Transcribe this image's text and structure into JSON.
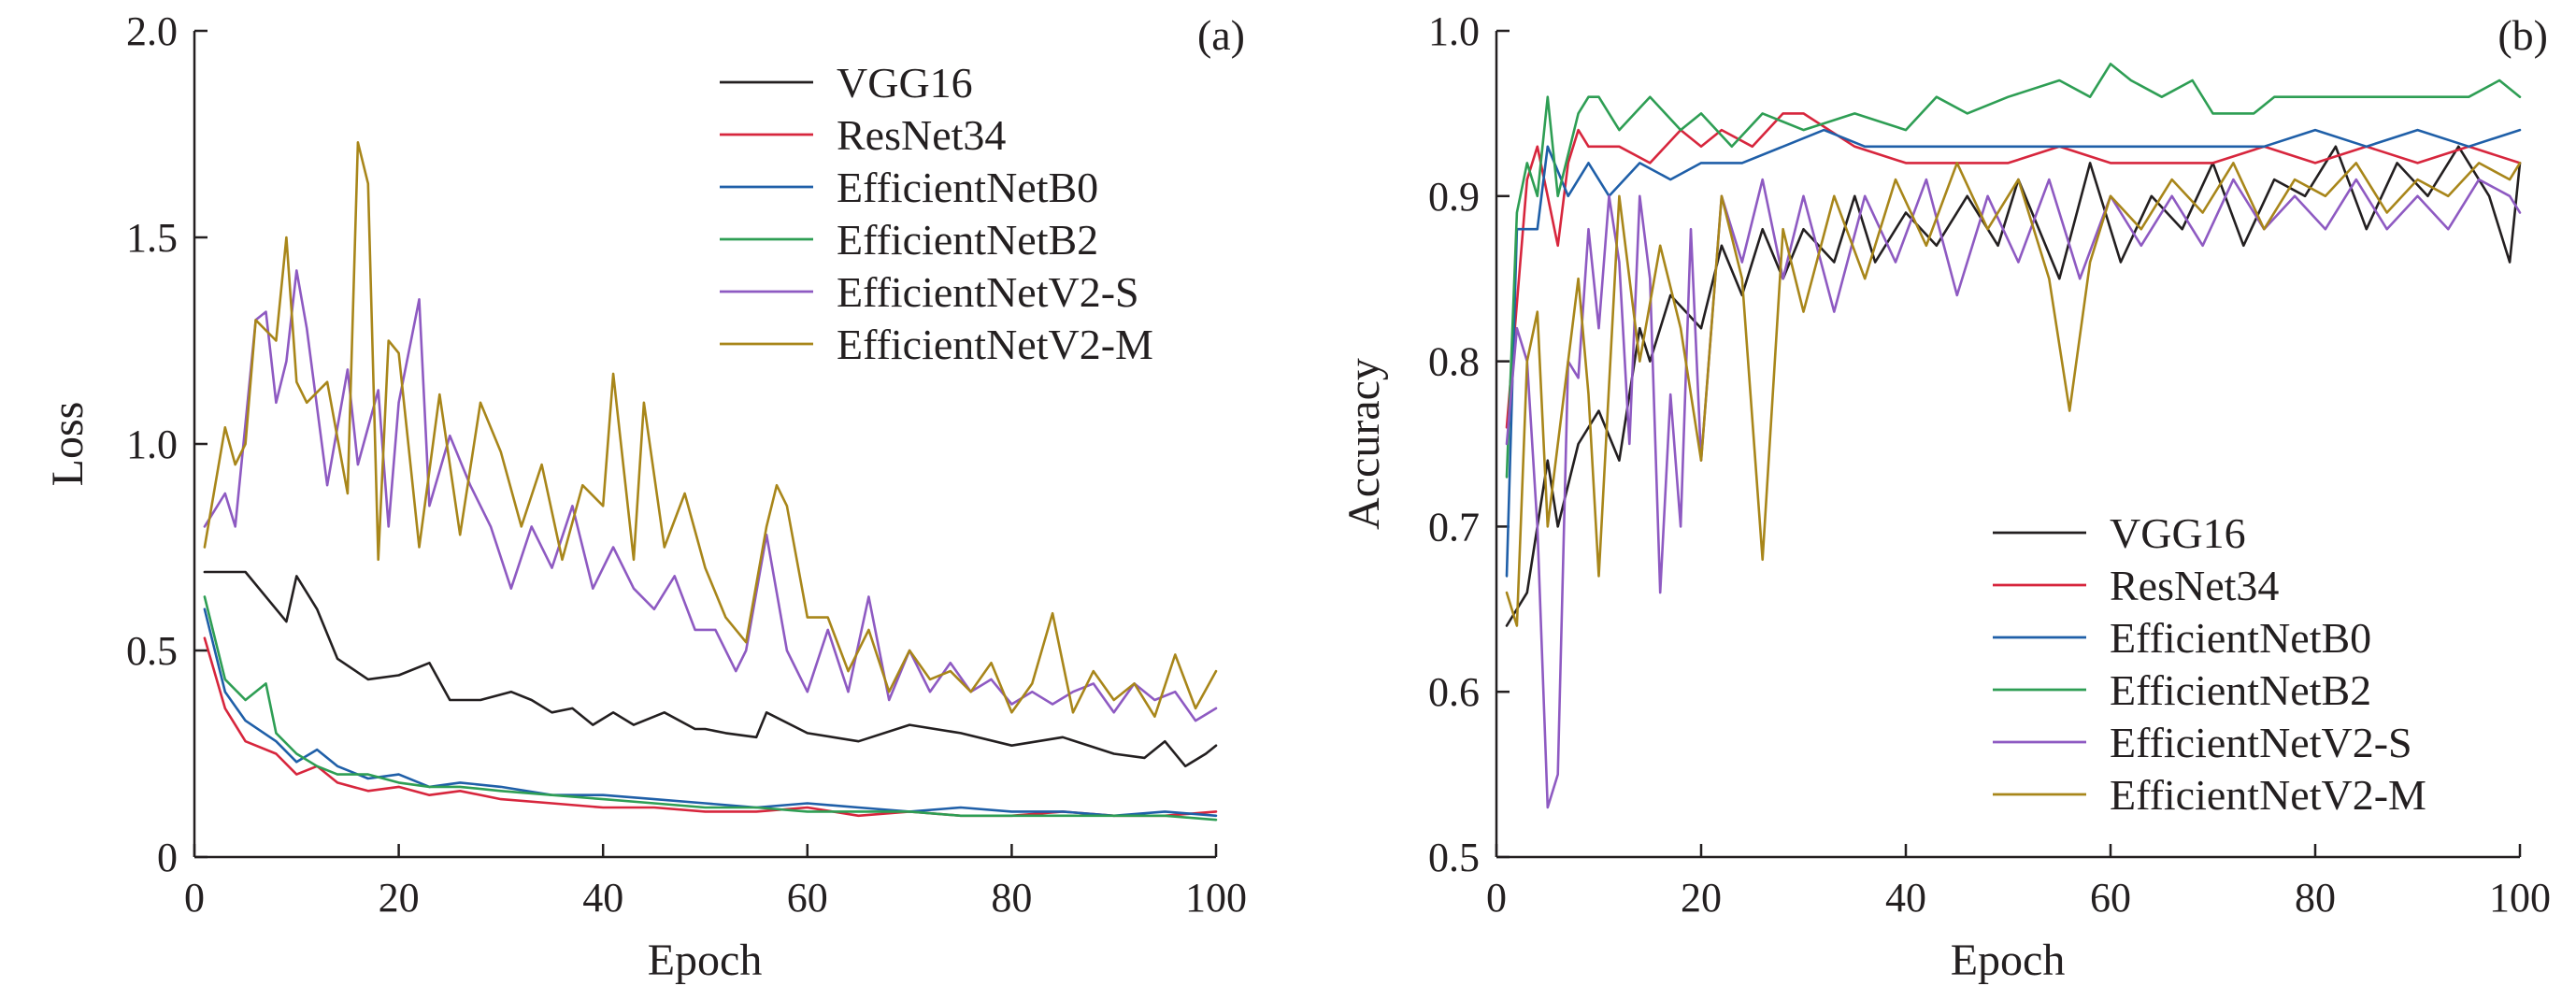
{
  "chart_data": [
    {
      "type": "line",
      "panel_label": "(a)",
      "xlabel": "Epoch",
      "ylabel": "Loss",
      "xlim": [
        0,
        100
      ],
      "ylim": [
        0,
        2.0
      ],
      "xticks": [
        "0",
        "20",
        "40",
        "60",
        "80",
        "100"
      ],
      "yticks": [
        "0",
        "0.5",
        "1.0",
        "1.5",
        "2.0"
      ],
      "legend_position": "top-right",
      "grid": false,
      "series": [
        {
          "name": "VGG16",
          "color": "#231f20",
          "x": [
            1,
            5,
            9,
            10,
            12,
            14,
            17,
            20,
            23,
            25,
            28,
            31,
            33,
            35,
            37,
            39,
            41,
            43,
            46,
            49,
            50,
            52,
            55,
            56,
            60,
            65,
            70,
            75,
            80,
            85,
            90,
            93,
            95,
            97,
            99,
            100
          ],
          "values": [
            0.69,
            0.69,
            0.57,
            0.68,
            0.6,
            0.48,
            0.43,
            0.44,
            0.47,
            0.38,
            0.38,
            0.4,
            0.38,
            0.35,
            0.36,
            0.32,
            0.35,
            0.32,
            0.35,
            0.31,
            0.31,
            0.3,
            0.29,
            0.35,
            0.3,
            0.28,
            0.32,
            0.3,
            0.27,
            0.29,
            0.25,
            0.24,
            0.28,
            0.22,
            0.25,
            0.27
          ]
        },
        {
          "name": "ResNet34",
          "color": "#d7263d",
          "x": [
            1,
            3,
            5,
            8,
            10,
            12,
            14,
            17,
            20,
            23,
            26,
            30,
            35,
            40,
            45,
            50,
            55,
            60,
            65,
            70,
            75,
            80,
            85,
            90,
            95,
            100
          ],
          "values": [
            0.53,
            0.36,
            0.28,
            0.25,
            0.2,
            0.22,
            0.18,
            0.16,
            0.17,
            0.15,
            0.16,
            0.14,
            0.13,
            0.12,
            0.12,
            0.11,
            0.11,
            0.12,
            0.1,
            0.11,
            0.1,
            0.1,
            0.11,
            0.1,
            0.1,
            0.11
          ]
        },
        {
          "name": "EfficientNetB0",
          "color": "#1f5fa8",
          "x": [
            1,
            3,
            5,
            8,
            10,
            12,
            14,
            17,
            20,
            23,
            26,
            30,
            35,
            40,
            45,
            50,
            55,
            60,
            65,
            70,
            75,
            80,
            85,
            90,
            95,
            100
          ],
          "values": [
            0.6,
            0.4,
            0.33,
            0.28,
            0.23,
            0.26,
            0.22,
            0.19,
            0.2,
            0.17,
            0.18,
            0.17,
            0.15,
            0.15,
            0.14,
            0.13,
            0.12,
            0.13,
            0.12,
            0.11,
            0.12,
            0.11,
            0.11,
            0.1,
            0.11,
            0.1
          ]
        },
        {
          "name": "EfficientNetB2",
          "color": "#2e9e54",
          "x": [
            1,
            3,
            5,
            7,
            8,
            10,
            12,
            14,
            17,
            20,
            23,
            26,
            30,
            35,
            40,
            45,
            50,
            55,
            60,
            65,
            70,
            75,
            80,
            85,
            90,
            95,
            100
          ],
          "values": [
            0.63,
            0.43,
            0.38,
            0.42,
            0.3,
            0.25,
            0.22,
            0.2,
            0.2,
            0.18,
            0.17,
            0.17,
            0.16,
            0.15,
            0.14,
            0.13,
            0.12,
            0.12,
            0.11,
            0.11,
            0.11,
            0.1,
            0.1,
            0.1,
            0.1,
            0.1,
            0.09
          ]
        },
        {
          "name": "EfficientNetV2-S",
          "color": "#8e5ac2",
          "x": [
            1,
            3,
            4,
            6,
            7,
            8,
            9,
            10,
            11,
            13,
            15,
            16,
            18,
            19,
            20,
            22,
            23,
            25,
            27,
            29,
            31,
            33,
            35,
            37,
            39,
            41,
            43,
            45,
            47,
            49,
            51,
            53,
            54,
            56,
            58,
            60,
            62,
            64,
            66,
            68,
            70,
            72,
            74,
            76,
            78,
            80,
            82,
            84,
            86,
            88,
            90,
            92,
            94,
            96,
            98,
            100
          ],
          "values": [
            0.8,
            0.88,
            0.8,
            1.3,
            1.32,
            1.1,
            1.2,
            1.42,
            1.28,
            0.9,
            1.18,
            0.95,
            1.13,
            0.8,
            1.1,
            1.35,
            0.85,
            1.02,
            0.9,
            0.8,
            0.65,
            0.8,
            0.7,
            0.85,
            0.65,
            0.75,
            0.65,
            0.6,
            0.68,
            0.55,
            0.55,
            0.45,
            0.5,
            0.78,
            0.5,
            0.4,
            0.55,
            0.4,
            0.63,
            0.38,
            0.5,
            0.4,
            0.47,
            0.4,
            0.43,
            0.37,
            0.4,
            0.37,
            0.4,
            0.42,
            0.35,
            0.42,
            0.38,
            0.4,
            0.33,
            0.36
          ]
        },
        {
          "name": "EfficientNetV2-M",
          "color": "#a8861a",
          "x": [
            1,
            3,
            4,
            5,
            6,
            8,
            9,
            10,
            11,
            13,
            15,
            16,
            17,
            18,
            19,
            20,
            22,
            24,
            26,
            28,
            30,
            32,
            34,
            36,
            38,
            40,
            41,
            43,
            44,
            46,
            48,
            50,
            52,
            54,
            56,
            57,
            58,
            60,
            62,
            64,
            66,
            68,
            70,
            72,
            74,
            76,
            78,
            80,
            82,
            84,
            86,
            88,
            90,
            92,
            94,
            96,
            98,
            100
          ],
          "values": [
            0.75,
            1.04,
            0.95,
            1.0,
            1.3,
            1.25,
            1.5,
            1.15,
            1.1,
            1.15,
            0.88,
            1.73,
            1.63,
            0.72,
            1.25,
            1.22,
            0.75,
            1.12,
            0.78,
            1.1,
            0.98,
            0.8,
            0.95,
            0.72,
            0.9,
            0.85,
            1.17,
            0.72,
            1.1,
            0.75,
            0.88,
            0.7,
            0.58,
            0.52,
            0.8,
            0.9,
            0.85,
            0.58,
            0.58,
            0.45,
            0.55,
            0.4,
            0.5,
            0.43,
            0.45,
            0.4,
            0.47,
            0.35,
            0.42,
            0.59,
            0.35,
            0.45,
            0.38,
            0.42,
            0.34,
            0.49,
            0.36,
            0.45
          ]
        }
      ]
    },
    {
      "type": "line",
      "panel_label": "(b)",
      "xlabel": "Epoch",
      "ylabel": "Accuracy",
      "xlim": [
        0,
        100
      ],
      "ylim": [
        0.5,
        1.0
      ],
      "xticks": [
        "0",
        "20",
        "40",
        "60",
        "80",
        "100"
      ],
      "yticks": [
        "0.5",
        "0.6",
        "0.7",
        "0.8",
        "0.9",
        "1.0"
      ],
      "legend_position": "bottom-right",
      "grid": false,
      "series": [
        {
          "name": "VGG16",
          "color": "#231f20",
          "x": [
            1,
            3,
            5,
            6,
            8,
            10,
            12,
            14,
            15,
            17,
            20,
            22,
            24,
            26,
            28,
            30,
            33,
            35,
            37,
            40,
            43,
            46,
            49,
            51,
            55,
            58,
            61,
            64,
            67,
            70,
            73,
            76,
            79,
            82,
            85,
            88,
            91,
            94,
            97,
            99,
            100
          ],
          "values": [
            0.64,
            0.66,
            0.74,
            0.7,
            0.75,
            0.77,
            0.74,
            0.82,
            0.8,
            0.84,
            0.82,
            0.87,
            0.84,
            0.88,
            0.85,
            0.88,
            0.86,
            0.9,
            0.86,
            0.89,
            0.87,
            0.9,
            0.87,
            0.91,
            0.85,
            0.92,
            0.86,
            0.9,
            0.88,
            0.92,
            0.87,
            0.91,
            0.9,
            0.93,
            0.88,
            0.92,
            0.9,
            0.93,
            0.9,
            0.86,
            0.92
          ]
        },
        {
          "name": "ResNet34",
          "color": "#d7263d",
          "x": [
            1,
            3,
            4,
            5,
            6,
            7,
            8,
            9,
            10,
            12,
            15,
            18,
            20,
            22,
            25,
            28,
            30,
            35,
            40,
            45,
            50,
            55,
            60,
            65,
            70,
            75,
            80,
            85,
            90,
            95,
            100
          ],
          "values": [
            0.76,
            0.91,
            0.93,
            0.9,
            0.87,
            0.92,
            0.94,
            0.93,
            0.93,
            0.93,
            0.92,
            0.94,
            0.93,
            0.94,
            0.93,
            0.95,
            0.95,
            0.93,
            0.92,
            0.92,
            0.92,
            0.93,
            0.92,
            0.92,
            0.92,
            0.93,
            0.92,
            0.93,
            0.92,
            0.93,
            0.92
          ]
        },
        {
          "name": "EfficientNetB0",
          "color": "#1f5fa8",
          "x": [
            1,
            2,
            3,
            4,
            5,
            7,
            9,
            11,
            14,
            17,
            20,
            24,
            28,
            32,
            36,
            40,
            45,
            50,
            55,
            60,
            65,
            70,
            75,
            80,
            85,
            90,
            95,
            100
          ],
          "values": [
            0.67,
            0.88,
            0.88,
            0.88,
            0.93,
            0.9,
            0.92,
            0.9,
            0.92,
            0.91,
            0.92,
            0.92,
            0.93,
            0.94,
            0.93,
            0.93,
            0.93,
            0.93,
            0.93,
            0.93,
            0.93,
            0.93,
            0.93,
            0.94,
            0.93,
            0.94,
            0.93,
            0.94
          ]
        },
        {
          "name": "EfficientNetB2",
          "color": "#2e9e54",
          "x": [
            1,
            2,
            3,
            4,
            5,
            6,
            8,
            9,
            10,
            12,
            15,
            18,
            20,
            23,
            26,
            30,
            35,
            40,
            43,
            46,
            50,
            55,
            58,
            60,
            62,
            65,
            68,
            70,
            74,
            76,
            80,
            85,
            90,
            95,
            98,
            100
          ],
          "values": [
            0.73,
            0.89,
            0.92,
            0.9,
            0.96,
            0.9,
            0.95,
            0.96,
            0.96,
            0.94,
            0.96,
            0.94,
            0.95,
            0.93,
            0.95,
            0.94,
            0.95,
            0.94,
            0.96,
            0.95,
            0.96,
            0.97,
            0.96,
            0.98,
            0.97,
            0.96,
            0.97,
            0.95,
            0.95,
            0.96,
            0.96,
            0.96,
            0.96,
            0.96,
            0.97,
            0.96
          ]
        },
        {
          "name": "EfficientNetV2-S",
          "color": "#8e5ac2",
          "x": [
            1,
            2,
            3,
            4,
            5,
            6,
            7,
            8,
            9,
            10,
            11,
            12,
            13,
            14,
            15,
            16,
            17,
            18,
            19,
            20,
            22,
            24,
            26,
            28,
            30,
            33,
            36,
            39,
            42,
            45,
            48,
            51,
            54,
            57,
            60,
            63,
            66,
            69,
            72,
            75,
            78,
            81,
            84,
            87,
            90,
            93,
            96,
            99,
            100
          ],
          "values": [
            0.75,
            0.82,
            0.8,
            0.7,
            0.53,
            0.55,
            0.8,
            0.79,
            0.88,
            0.82,
            0.9,
            0.86,
            0.75,
            0.9,
            0.85,
            0.66,
            0.78,
            0.7,
            0.88,
            0.74,
            0.9,
            0.86,
            0.91,
            0.85,
            0.9,
            0.83,
            0.9,
            0.86,
            0.91,
            0.84,
            0.9,
            0.86,
            0.91,
            0.85,
            0.9,
            0.87,
            0.9,
            0.87,
            0.91,
            0.88,
            0.9,
            0.88,
            0.91,
            0.88,
            0.9,
            0.88,
            0.91,
            0.9,
            0.89
          ]
        },
        {
          "name": "EfficientNetV2-M",
          "color": "#a8861a",
          "x": [
            1,
            2,
            3,
            4,
            5,
            6,
            7,
            8,
            9,
            10,
            12,
            14,
            16,
            18,
            20,
            22,
            24,
            26,
            28,
            30,
            33,
            36,
            39,
            42,
            45,
            48,
            51,
            54,
            56,
            58,
            60,
            63,
            66,
            69,
            72,
            75,
            78,
            81,
            84,
            87,
            90,
            93,
            96,
            99,
            100
          ],
          "values": [
            0.66,
            0.64,
            0.8,
            0.83,
            0.7,
            0.75,
            0.8,
            0.85,
            0.78,
            0.67,
            0.9,
            0.8,
            0.87,
            0.82,
            0.74,
            0.9,
            0.85,
            0.68,
            0.88,
            0.83,
            0.9,
            0.85,
            0.91,
            0.87,
            0.92,
            0.88,
            0.91,
            0.85,
            0.77,
            0.86,
            0.9,
            0.88,
            0.91,
            0.89,
            0.92,
            0.88,
            0.91,
            0.9,
            0.92,
            0.89,
            0.91,
            0.9,
            0.92,
            0.91,
            0.92
          ]
        }
      ]
    }
  ]
}
